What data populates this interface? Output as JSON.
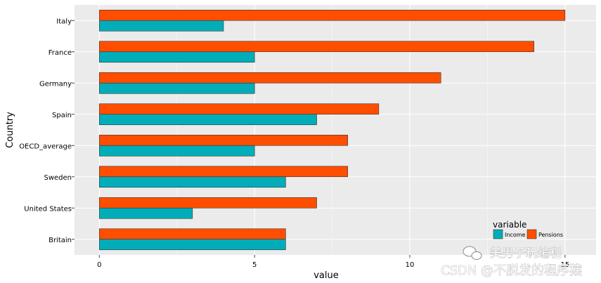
{
  "chart_data": {
    "type": "bar",
    "orientation": "horizontal",
    "categories": [
      "Italy",
      "France",
      "Germany",
      "Spain",
      "OECD_average",
      "Sweden",
      "United States",
      "Britain"
    ],
    "series": [
      {
        "name": "Income",
        "color": "#00adb8",
        "values": [
          4,
          5,
          5,
          7,
          5,
          6,
          3,
          6
        ]
      },
      {
        "name": "Pensions",
        "color": "#ff4e00",
        "values": [
          15,
          14,
          11,
          9,
          8,
          8,
          7,
          6
        ]
      }
    ],
    "xlabel": "value",
    "ylabel": "Country",
    "xlim": [
      -0.8,
      16
    ],
    "xticks": [
      0,
      5,
      10,
      15
    ],
    "grid": true,
    "legend": {
      "title": "variable",
      "placement": "bottom-right"
    }
  },
  "watermark": {
    "line1": "美男子玩编程",
    "line2": "CSDN @不脱发的程序猿"
  }
}
